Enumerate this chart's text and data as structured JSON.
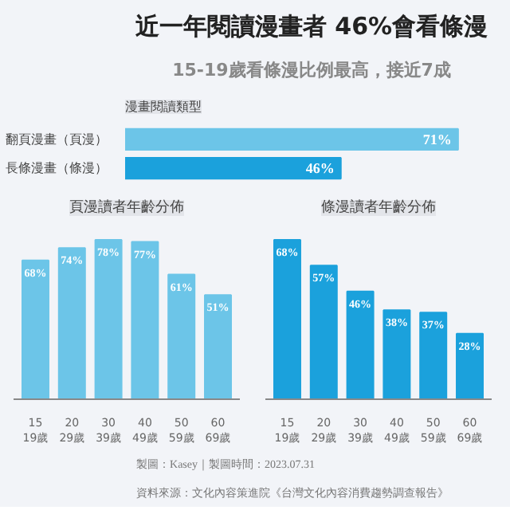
{
  "chart_data": [
    {
      "type": "bar",
      "orientation": "horizontal",
      "title": "近一年閱讀漫畫者 46%會看條漫",
      "subtitle": "15-19歲看條漫比例最高，接近7成",
      "ylabel": "漫畫閱讀類型",
      "categories": [
        "翻頁漫畫（頁漫）",
        "長條漫畫（條漫）"
      ],
      "values": [
        71,
        46
      ],
      "colors": [
        "#6cc5e8",
        "#1ba1dc"
      ],
      "value_labels": [
        "71%",
        "46%"
      ],
      "annotations": [
        "製圖：Kasey｜製圖時間：2023.07.31",
        "資料來源：文化內容策進院《台灣文化內容消費趨勢調查報告》"
      ]
    },
    {
      "type": "bar",
      "title": "頁漫讀者年齡分佈",
      "categories": [
        "15\n19歲",
        "20\n29歲",
        "30\n39歲",
        "40\n49歲",
        "50\n59歲",
        "60\n69歲"
      ],
      "values": [
        68,
        74,
        78,
        77,
        61,
        51
      ],
      "color": "#6cc5e8",
      "value_labels": [
        "68%",
        "74%",
        "78%",
        "77%",
        "61%",
        "51%"
      ]
    },
    {
      "type": "bar",
      "title": "條漫讀者年齡分佈",
      "categories": [
        "15\n19歲",
        "20\n29歲",
        "30\n39歲",
        "40\n49歲",
        "50\n59歲",
        "60\n69歲"
      ],
      "values": [
        68,
        57,
        46,
        38,
        37,
        28
      ],
      "color": "#1ba1dc",
      "value_labels": [
        "68%",
        "57%",
        "46%",
        "38%",
        "37%",
        "28%"
      ]
    }
  ]
}
